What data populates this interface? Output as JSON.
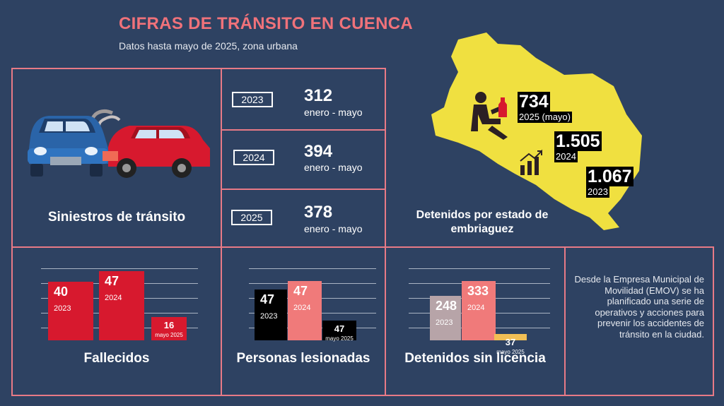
{
  "header": {
    "title": "CIFRAS DE TRÁNSITO EN CUENCA",
    "subtitle": "Datos hasta mayo de 2025, zona urbana"
  },
  "siniestros": {
    "label": "Siniestros de tránsito",
    "rows": [
      {
        "year": "2023",
        "value": "312",
        "period": "enero - mayo"
      },
      {
        "year": "2024",
        "value": "394",
        "period": "enero - mayo"
      },
      {
        "year": "2025",
        "value": "378",
        "period": "enero - mayo"
      }
    ]
  },
  "detenidos_embriaguez": {
    "label": "Detenidos por estado de embriaguez",
    "items": [
      {
        "value": "734",
        "label": "2025 (mayo)"
      },
      {
        "value": "1.505",
        "label": "2024"
      },
      {
        "value": "1.067",
        "label": "2023"
      }
    ]
  },
  "chart_data": [
    {
      "type": "bar",
      "title": "Fallecidos",
      "categories": [
        "2023",
        "2024",
        "mayo 2025"
      ],
      "values": [
        40,
        47,
        16
      ],
      "colors": [
        "#d7192e",
        "#d7192e",
        "#d7192e"
      ]
    },
    {
      "type": "bar",
      "title": "Personas lesionadas",
      "categories": [
        "2023",
        "2024",
        "mayo 2025"
      ],
      "values": [
        47,
        47,
        47
      ],
      "colors": [
        "#000000",
        "#f07a7a",
        "#000000"
      ]
    },
    {
      "type": "bar",
      "title": "Detenidos sin licencia",
      "categories": [
        "2023",
        "2024",
        "mayo 2025"
      ],
      "values": [
        248,
        333,
        37
      ],
      "colors": [
        "#b7a4a8",
        "#f07a7a",
        "#f1bf55"
      ]
    }
  ],
  "info": {
    "text": "Desde la Empresa Municipal de Movilidad (EMOV) se ha planificado una serie de operativos y acciones para prevenir los accidentes de tránsito en la ciudad."
  }
}
